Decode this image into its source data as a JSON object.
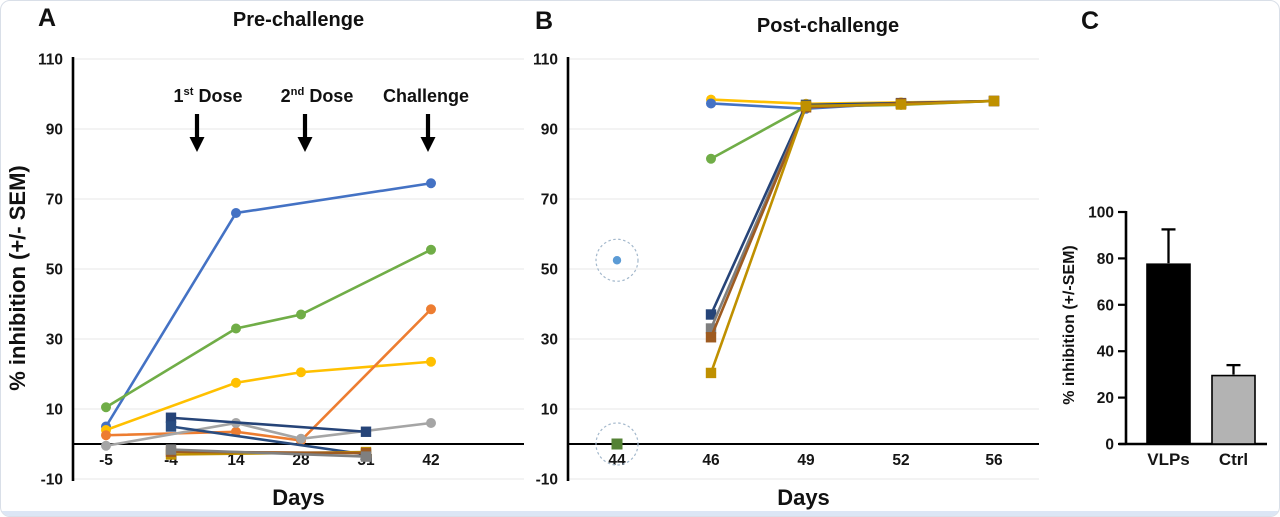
{
  "figure": {
    "panel_letters": {
      "a": "A",
      "b": "B",
      "c": "C"
    },
    "annotation_parts": [
      {
        "base": "1",
        "sup": "st",
        "rest": " Dose"
      },
      {
        "base": "2",
        "sup": "nd",
        "rest": " Dose"
      },
      {
        "base": "Challenge",
        "sup": "",
        "rest": ""
      }
    ]
  },
  "chart_data": [
    {
      "panel": "A",
      "type": "line",
      "title": "Pre-challenge",
      "xlabel": "Days",
      "ylabel": "% inhibition (+/- SEM)",
      "ylim": [
        -10,
        110
      ],
      "yticks": [
        110,
        90,
        70,
        50,
        30,
        10,
        -10
      ],
      "categories": [
        "-5",
        "-4",
        "14",
        "28",
        "31",
        "42"
      ],
      "grid": true,
      "legend": "none",
      "annotations": [
        "1st Dose",
        "2nd Dose",
        "Challenge"
      ],
      "series": [
        {
          "name": "blue-circle",
          "marker": "circle",
          "color": "#4472C4",
          "points": [
            [
              "-5",
              5
            ],
            [
              "14",
              66
            ],
            [
              "42",
              74.5
            ]
          ]
        },
        {
          "name": "green-circle",
          "marker": "circle",
          "color": "#70AD47",
          "points": [
            [
              "-5",
              10.5
            ],
            [
              "14",
              33
            ],
            [
              "28",
              37
            ],
            [
              "42",
              55.5
            ]
          ]
        },
        {
          "name": "yellow-circle",
          "marker": "circle",
          "color": "#FFC000",
          "points": [
            [
              "-5",
              4
            ],
            [
              "14",
              17.5
            ],
            [
              "28",
              20.5
            ],
            [
              "42",
              23.5
            ]
          ]
        },
        {
          "name": "orange-circle",
          "marker": "circle",
          "color": "#ED7D31",
          "points": [
            [
              "-5",
              2.5
            ],
            [
              "14",
              3.5
            ],
            [
              "28",
              1
            ],
            [
              "42",
              38.5
            ]
          ]
        },
        {
          "name": "gray-circle",
          "marker": "circle",
          "color": "#A5A5A5",
          "points": [
            [
              "-5",
              -0.5
            ],
            [
              "14",
              6
            ],
            [
              "28",
              1.5
            ],
            [
              "42",
              6
            ]
          ]
        },
        {
          "name": "navy-square-1",
          "marker": "square",
          "color": "#264478",
          "points": [
            [
              "-4",
              7.5
            ],
            [
              "31",
              3.5
            ]
          ]
        },
        {
          "name": "navy-square-2",
          "marker": "square",
          "color": "#2A4D80",
          "points": [
            [
              "-4",
              5
            ],
            [
              "31",
              -3
            ]
          ]
        },
        {
          "name": "olive-square",
          "marker": "square",
          "color": "#BF9000",
          "points": [
            [
              "-4",
              -3
            ],
            [
              "31",
              -2.3
            ]
          ]
        },
        {
          "name": "brown-square",
          "marker": "square",
          "color": "#9E5B21",
          "points": [
            [
              "-4",
              -2.2
            ],
            [
              "31",
              -2.6
            ]
          ]
        },
        {
          "name": "gray-square",
          "marker": "square",
          "color": "#7F7F7F",
          "points": [
            [
              "-4",
              -1.6
            ],
            [
              "31",
              -3.6
            ]
          ]
        }
      ]
    },
    {
      "panel": "B",
      "type": "line",
      "title": "Post-challenge",
      "xlabel": "Days",
      "ylabel": "",
      "ylim": [
        -10,
        110
      ],
      "yticks": [
        110,
        90,
        70,
        50,
        30,
        10,
        -10
      ],
      "categories": [
        "44",
        "46",
        "49",
        "52",
        "56"
      ],
      "grid": true,
      "legend": "none",
      "series": [
        {
          "name": "yellow-circle",
          "marker": "circle",
          "color": "#FFC000",
          "points": [
            [
              "46",
              98.4
            ],
            [
              "49",
              97.2
            ],
            [
              "52",
              97.6
            ],
            [
              "56",
              98
            ]
          ]
        },
        {
          "name": "green-circle",
          "marker": "circle",
          "color": "#70AD47",
          "points": [
            [
              "46",
              81.5
            ],
            [
              "49",
              96.4
            ],
            [
              "52",
              96.9
            ],
            [
              "56",
              98
            ]
          ]
        },
        {
          "name": "blue-circle",
          "marker": "circle",
          "color": "#4472C4",
          "points": [
            [
              "46",
              97.3
            ],
            [
              "49",
              95.8
            ],
            [
              "52",
              97.4
            ],
            [
              "56",
              98
            ]
          ]
        },
        {
          "name": "navy-square",
          "marker": "square",
          "color": "#264478",
          "points": [
            [
              "46",
              37
            ],
            [
              "49",
              96.9
            ],
            [
              "52",
              97.4
            ],
            [
              "56",
              98
            ]
          ]
        },
        {
          "name": "gray-square",
          "marker": "square",
          "color": "#7F7F7F",
          "points": [
            [
              "46",
              33
            ],
            [
              "49",
              96.2
            ],
            [
              "52",
              97.2
            ],
            [
              "56",
              98
            ]
          ]
        },
        {
          "name": "brown-square",
          "marker": "square",
          "color": "#9E5B21",
          "points": [
            [
              "46",
              30.5
            ],
            [
              "49",
              96.2
            ],
            [
              "52",
              97.3
            ],
            [
              "56",
              98
            ]
          ]
        },
        {
          "name": "olive-square",
          "marker": "square",
          "color": "#BF9000",
          "points": [
            [
              "46",
              20.3
            ],
            [
              "49",
              96.6
            ],
            [
              "52",
              97
            ],
            [
              "56",
              98
            ]
          ]
        }
      ],
      "highlighted_points": [
        {
          "name": "circled-blue-point",
          "x": "44",
          "y": 52.5,
          "marker": "circle",
          "color": "#5B9BD5"
        },
        {
          "name": "circled-green-point",
          "x": "44",
          "y": 0,
          "marker": "square",
          "color": "#548235"
        }
      ]
    },
    {
      "panel": "C",
      "type": "bar",
      "title": "",
      "xlabel": "",
      "ylabel": "% inhibition (+/-SEM)",
      "ylim": [
        0,
        100
      ],
      "yticks": [
        0,
        20,
        40,
        60,
        80,
        100
      ],
      "categories": [
        "VLPs",
        "Ctrl"
      ],
      "values": [
        77.5,
        29.5
      ],
      "errors_up": [
        15,
        4.5
      ],
      "bar_colors": [
        "#000000",
        "#B3B3B3"
      ]
    }
  ]
}
